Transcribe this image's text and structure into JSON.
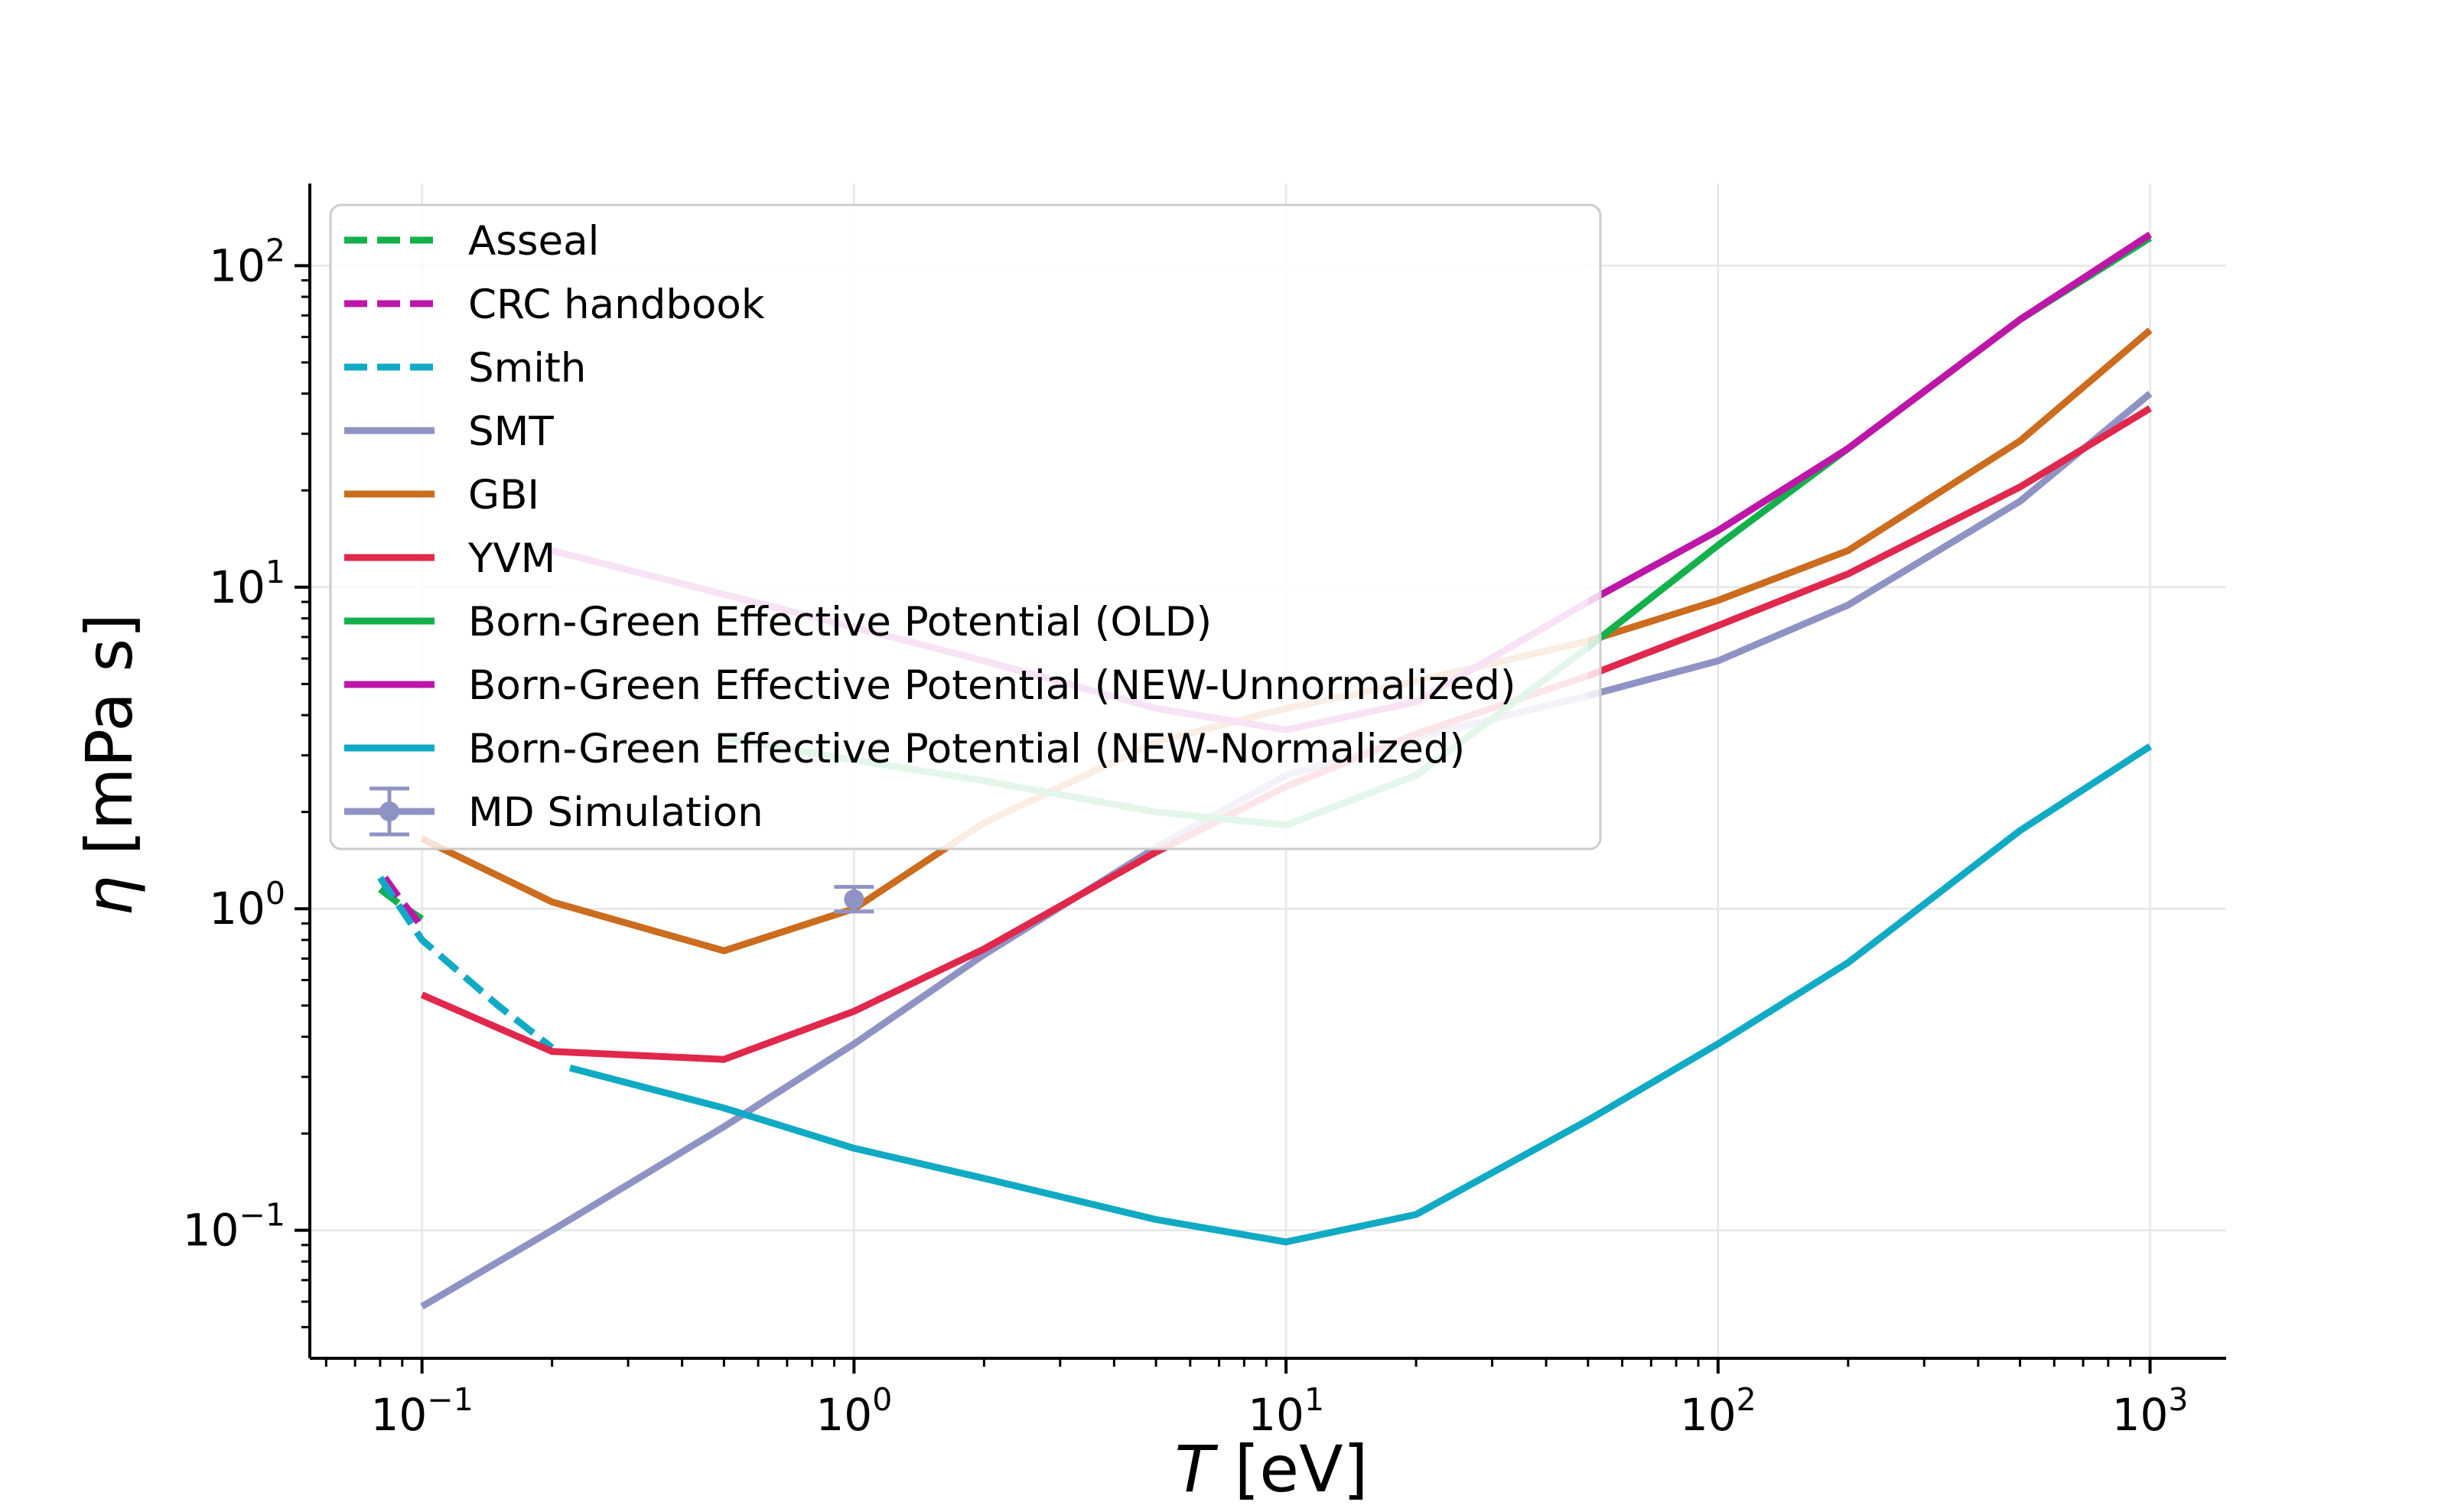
{
  "chart_data": {
    "type": "line",
    "xlabel": "T [eV]",
    "ylabel": "η [mPa s]",
    "xscale": "log",
    "yscale": "log",
    "xlim": [
      0.055,
      1500
    ],
    "ylim": [
      0.04,
      180
    ],
    "grid": true,
    "legend_position": "top-left",
    "x_ticks": [
      {
        "value": 0.1,
        "base": "10",
        "exp": "−1"
      },
      {
        "value": 1,
        "base": "10",
        "exp": "0"
      },
      {
        "value": 10,
        "base": "10",
        "exp": "1"
      },
      {
        "value": 100,
        "base": "10",
        "exp": "2"
      },
      {
        "value": 1000,
        "base": "10",
        "exp": "3"
      }
    ],
    "y_ticks": [
      {
        "value": 0.1,
        "base": "10",
        "exp": "−1"
      },
      {
        "value": 1,
        "base": "10",
        "exp": "0"
      },
      {
        "value": 10,
        "base": "10",
        "exp": "1"
      },
      {
        "value": 100,
        "base": "10",
        "exp": "2"
      }
    ],
    "series": [
      {
        "name": "Asseal",
        "color": "#14b04c",
        "dash": "dashed",
        "x": [
          0.08,
          0.09,
          0.1
        ],
        "y": [
          1.15,
          1.02,
          0.93
        ]
      },
      {
        "name": "CRC handbook",
        "color": "#bd16a8",
        "dash": "dashed",
        "x": [
          0.082,
          0.09,
          0.1
        ],
        "y": [
          1.25,
          1.05,
          0.88
        ]
      },
      {
        "name": "Smith",
        "color": "#10aac4",
        "dash": "dashed",
        "x": [
          0.08,
          0.1,
          0.15,
          0.2
        ],
        "y": [
          1.25,
          0.8,
          0.5,
          0.37
        ]
      },
      {
        "name": "SMT",
        "color": "#8f93c4",
        "dash": "solid",
        "x": [
          0.1,
          0.2,
          0.5,
          1,
          2,
          5,
          10,
          20,
          50,
          100,
          200,
          500,
          1000
        ],
        "y": [
          0.058,
          0.1,
          0.21,
          0.38,
          0.72,
          1.55,
          2.6,
          3.4,
          4.6,
          5.9,
          8.8,
          18.5,
          40
        ]
      },
      {
        "name": "GBI",
        "color": "#cc6c1e",
        "dash": "solid",
        "x": [
          0.1,
          0.2,
          0.5,
          1,
          2,
          5,
          10,
          20,
          50,
          100,
          200,
          500,
          1000
        ],
        "y": [
          1.65,
          1.05,
          0.74,
          1.0,
          1.85,
          3.3,
          4.2,
          5.1,
          6.8,
          9.1,
          13.0,
          28.5,
          63
        ]
      },
      {
        "name": "YVM",
        "color": "#e0284c",
        "dash": "solid",
        "x": [
          0.1,
          0.2,
          0.5,
          1,
          2,
          5,
          10,
          20,
          50,
          100,
          200,
          500,
          1000
        ],
        "y": [
          0.54,
          0.36,
          0.34,
          0.48,
          0.75,
          1.5,
          2.4,
          3.5,
          5.3,
          7.6,
          11,
          20.5,
          36
        ]
      },
      {
        "name": "Born-Green Effective Potential (OLD)",
        "color": "#14b04c",
        "dash": "solid",
        "x": [
          0.5,
          1,
          2,
          5,
          10,
          20,
          50,
          100,
          200,
          500,
          1000
        ],
        "y": [
          3.4,
          2.9,
          2.5,
          2.0,
          1.82,
          2.6,
          6.5,
          13.5,
          27,
          68,
          122
        ]
      },
      {
        "name": "Born-Green Effective Potential (NEW-Unnormalized)",
        "color": "#bd16a8",
        "dash": "solid",
        "x": [
          0.2,
          0.5,
          1,
          2,
          5,
          10,
          20,
          50,
          100,
          200,
          500,
          1000
        ],
        "y": [
          13,
          9.5,
          7.5,
          5.9,
          4.2,
          3.6,
          4.4,
          9,
          15,
          27,
          68,
          125
        ]
      },
      {
        "name": "Born-Green Effective Potential (NEW-Normalized)",
        "color": "#10aac4",
        "dash": "solid",
        "x": [
          0.22,
          0.5,
          1,
          2,
          5,
          10,
          20,
          50,
          100,
          200,
          500,
          1000
        ],
        "y": [
          0.32,
          0.24,
          0.18,
          0.145,
          0.108,
          0.092,
          0.112,
          0.22,
          0.38,
          0.68,
          1.75,
          3.2
        ]
      }
    ],
    "overlays": [
      {
        "x_start": 0.2,
        "x_end": 50,
        "color": "#ffffff",
        "opacity": 0.4
      }
    ],
    "errorbar_series": [
      {
        "name": "MD Simulation",
        "color": "#8f93c4",
        "x": [
          1
        ],
        "y": [
          1.07
        ],
        "yerr_low": [
          0.98
        ],
        "yerr_high": [
          1.17
        ]
      }
    ]
  }
}
